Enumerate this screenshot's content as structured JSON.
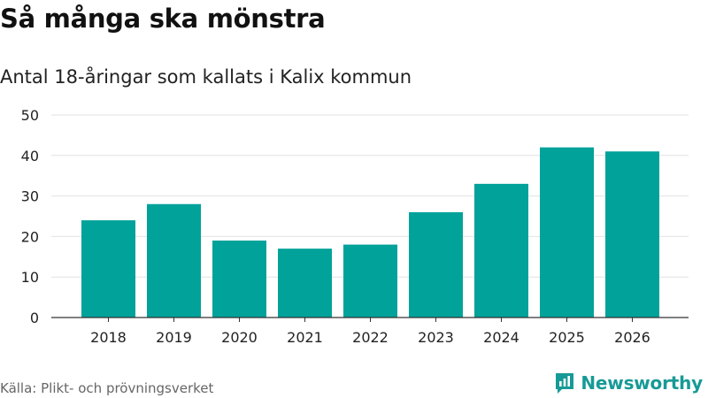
{
  "header": {
    "title": "Så många ska mönstra",
    "subtitle": "Antal 18-åringar som kallats i Kalix kommun"
  },
  "footer": {
    "source": "Källa: Plikt- och prövningsverket",
    "brand": "Newsworthy"
  },
  "colors": {
    "bar": "#00a29a",
    "grid": "#e2e2e2",
    "axis": "#333333",
    "brand": "#179a97"
  },
  "chart_data": {
    "type": "bar",
    "title": "Så många ska mönstra",
    "subtitle": "Antal 18-åringar som kallats i Kalix kommun",
    "xlabel": "",
    "ylabel": "",
    "categories": [
      "2018",
      "2019",
      "2020",
      "2021",
      "2022",
      "2023",
      "2024",
      "2025",
      "2026"
    ],
    "values": [
      24,
      28,
      19,
      17,
      18,
      26,
      33,
      42,
      41
    ],
    "ylim": [
      0,
      50
    ],
    "yticks": [
      0,
      10,
      20,
      30,
      40,
      50
    ],
    "grid": true
  }
}
